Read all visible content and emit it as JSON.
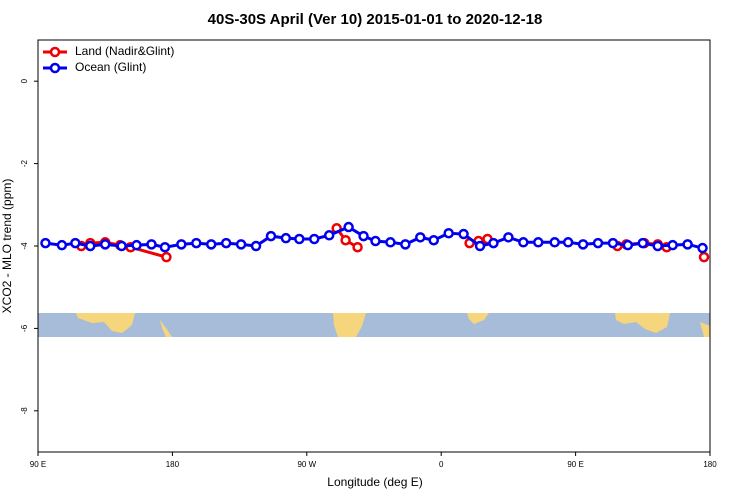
{
  "chart_data": {
    "type": "line",
    "title": "40S-30S April (Ver 10)   2015-01-01 to 2020-12-18",
    "x_label": "Longitude (deg E)",
    "y_label": "XCO2 - MLO trend (ppm)",
    "xlim": [
      90,
      540
    ],
    "xticks": [
      {
        "value": 90,
        "label": "90 E"
      },
      180,
      {
        "value": 270,
        "label": "90 W"
      },
      {
        "value": 360,
        "label": "0"
      },
      {
        "value": 450,
        "label": "90 E"
      },
      {
        "value": 540,
        "label": "180"
      }
    ],
    "ylim": [
      -9,
      1
    ],
    "yticks": [
      0,
      -2,
      -4,
      -6,
      -8
    ],
    "legend": "top-left",
    "series": [
      {
        "name": "Land (Nadir&Glint)",
        "color": "#ee0000",
        "x": [
          119,
          125,
          135,
          145,
          152,
          176,
          null,
          290,
          296,
          304,
          null,
          379,
          385,
          391,
          null,
          478,
          484,
          496,
          505,
          511,
          null,
          536
        ],
        "values": [
          -4.0,
          -3.93,
          -3.91,
          -3.98,
          -4.03,
          -4.27,
          null,
          -3.57,
          -3.86,
          -4.03,
          null,
          -3.93,
          -3.88,
          -3.83,
          null,
          -4.0,
          -3.96,
          -3.93,
          -3.96,
          -4.03,
          null,
          -4.27
        ]
      },
      {
        "name": "Ocean (Glint)",
        "color": "#0000ee",
        "x": [
          95,
          106,
          115,
          125,
          135,
          146,
          156,
          166,
          175,
          186,
          196,
          206,
          216,
          226,
          236,
          246,
          256,
          265,
          275,
          285,
          298,
          308,
          316,
          326,
          336,
          346,
          355,
          365,
          375,
          386,
          395,
          405,
          415,
          425,
          436,
          445,
          455,
          465,
          475,
          485,
          495,
          505,
          515,
          525,
          535
        ],
        "values": [
          -3.93,
          -3.98,
          -3.93,
          -4.0,
          -3.96,
          -4.0,
          -3.98,
          -3.96,
          -4.03,
          -3.96,
          -3.93,
          -3.96,
          -3.93,
          -3.96,
          -4.0,
          -3.76,
          -3.81,
          -3.83,
          -3.83,
          -3.74,
          -3.54,
          -3.76,
          -3.88,
          -3.91,
          -3.96,
          -3.79,
          -3.86,
          -3.69,
          -3.71,
          -4.0,
          -3.93,
          -3.79,
          -3.91,
          -3.91,
          -3.91,
          -3.91,
          -3.96,
          -3.93,
          -3.93,
          -3.98,
          -3.93,
          -4.0,
          -3.98,
          -3.96,
          -4.05
        ]
      }
    ]
  }
}
